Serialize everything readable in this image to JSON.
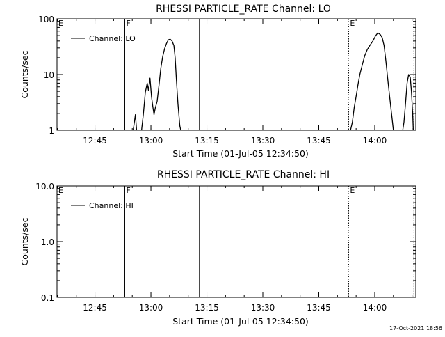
{
  "footer": "17-Oct-2021 18:56",
  "chart_data": [
    {
      "type": "line",
      "title": "RHESSI PARTICLE_RATE Channel: LO",
      "xlabel": "Start Time (01-Jul-05 12:34:50)",
      "ylabel": "Counts/sec",
      "yscale": "log",
      "ylim": [
        1,
        100
      ],
      "xlim": [
        "12:34:50",
        "14:11:00"
      ],
      "x_ticks": [
        "12:45",
        "13:00",
        "13:15",
        "13:30",
        "13:45",
        "14:00"
      ],
      "y_ticks": [
        "1",
        "10",
        "100"
      ],
      "legend": {
        "entries": [
          "Channel: LO"
        ],
        "placement": "top-left"
      },
      "markers": [
        {
          "label": "E",
          "x": "12:34:50",
          "style": "dotted"
        },
        {
          "label": "F",
          "x": "12:53:00",
          "style": "solid"
        },
        {
          "label": "",
          "x": "13:13:00",
          "style": "solid"
        },
        {
          "label": "E",
          "x": "13:53:00",
          "style": "dotted"
        },
        {
          "label": "",
          "x": "14:10:30",
          "style": "dotted"
        }
      ],
      "series": [
        {
          "name": "Channel: LO",
          "segments": [
            [
              [
                "12:55:15",
                1
              ],
              [
                "12:55:30",
                1.3
              ],
              [
                "12:55:50",
                1.9
              ],
              [
                "12:56:10",
                1.0
              ]
            ],
            [
              [
                "12:57:30",
                1
              ],
              [
                "12:58:00",
                2.0
              ],
              [
                "12:58:30",
                4.8
              ],
              [
                "12:59:00",
                7.0
              ],
              [
                "12:59:20",
                5.2
              ],
              [
                "12:59:45",
                8.6
              ],
              [
                "13:00:10",
                4.0
              ],
              [
                "13:00:30",
                2.7
              ],
              [
                "13:00:50",
                1.9
              ],
              [
                "13:01:10",
                2.5
              ],
              [
                "13:01:40",
                3.3
              ],
              [
                "13:02:10",
                6.5
              ],
              [
                "13:02:40",
                13
              ],
              [
                "13:03:10",
                21
              ],
              [
                "13:03:40",
                29
              ],
              [
                "13:04:10",
                36
              ],
              [
                "13:04:40",
                42
              ],
              [
                "13:05:10",
                43
              ],
              [
                "13:05:40",
                40
              ],
              [
                "13:06:10",
                33
              ],
              [
                "13:06:30",
                20
              ],
              [
                "13:06:50",
                8
              ],
              [
                "13:07:15",
                3
              ],
              [
                "13:07:45",
                1.2
              ],
              [
                "13:08:00",
                1
              ]
            ],
            [
              [
                "13:53:30",
                1
              ],
              [
                "13:54:00",
                1.4
              ],
              [
                "13:54:30",
                2.6
              ],
              [
                "13:55:00",
                4.0
              ],
              [
                "13:55:30",
                6.5
              ],
              [
                "13:56:00",
                10
              ],
              [
                "13:56:40",
                15
              ],
              [
                "13:57:20",
                22
              ],
              [
                "13:58:00",
                28
              ],
              [
                "13:58:40",
                33
              ],
              [
                "13:59:30",
                40
              ],
              [
                "14:00:10",
                49
              ],
              [
                "14:00:50",
                56
              ],
              [
                "14:01:30",
                52
              ],
              [
                "14:02:00",
                46
              ],
              [
                "14:02:30",
                33
              ],
              [
                "14:03:00",
                17
              ],
              [
                "14:03:30",
                8
              ],
              [
                "14:04:00",
                4
              ],
              [
                "14:04:30",
                2
              ],
              [
                "14:05:00",
                1
              ]
            ],
            [
              [
                "14:07:30",
                1
              ],
              [
                "14:07:50",
                1.4
              ],
              [
                "14:08:15",
                3
              ],
              [
                "14:08:40",
                7
              ],
              [
                "14:09:05",
                10
              ],
              [
                "14:09:30",
                9
              ],
              [
                "14:09:50",
                5
              ],
              [
                "14:10:10",
                2
              ],
              [
                "14:10:20",
                1
              ]
            ]
          ]
        }
      ]
    },
    {
      "type": "line",
      "title": "RHESSI PARTICLE_RATE Channel: HI",
      "xlabel": "Start Time (01-Jul-05 12:34:50)",
      "ylabel": "Counts/sec",
      "yscale": "log",
      "ylim": [
        0.1,
        10
      ],
      "xlim": [
        "12:34:50",
        "14:11:00"
      ],
      "x_ticks": [
        "12:45",
        "13:00",
        "13:15",
        "13:30",
        "13:45",
        "14:00"
      ],
      "y_ticks": [
        "0.1",
        "1.0",
        "10.0"
      ],
      "legend": {
        "entries": [
          "Channel: HI"
        ],
        "placement": "top-left"
      },
      "markers": [
        {
          "label": "E",
          "x": "12:34:50",
          "style": "dotted"
        },
        {
          "label": "F",
          "x": "12:53:00",
          "style": "solid"
        },
        {
          "label": "",
          "x": "13:13:00",
          "style": "solid"
        },
        {
          "label": "E",
          "x": "13:53:00",
          "style": "dotted"
        },
        {
          "label": "",
          "x": "14:10:30",
          "style": "dotted"
        }
      ],
      "series": [
        {
          "name": "Channel: HI",
          "segments": []
        }
      ]
    }
  ]
}
